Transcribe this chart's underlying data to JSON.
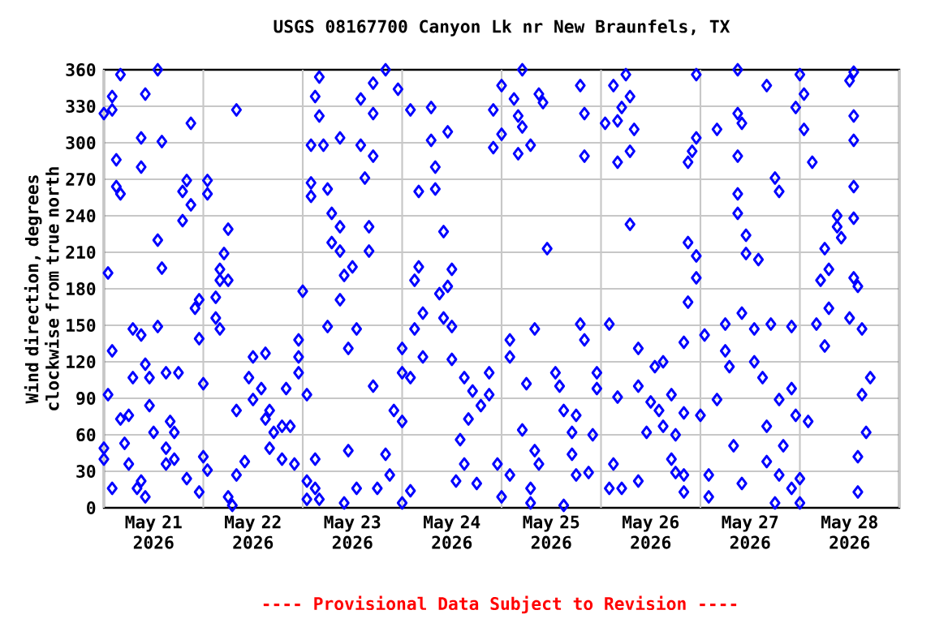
{
  "chart_data": {
    "type": "scatter",
    "title": "USGS 08167700 Canyon Lk nr New Braunfels, TX",
    "ylabel": "Wind direction, degrees clockwise from true north",
    "annotations": [
      "---- Provisional Data Subject to Revision ----"
    ],
    "color": "#0000ff",
    "marker": "diamond",
    "grid": true,
    "xlim": [
      "2026-05-21T00:00",
      "2026-05-29T00:00"
    ],
    "xticks": [
      {
        "value": "2026-05-21T00:00",
        "label": null
      },
      {
        "value": "2026-05-21T12:00",
        "label": "May 21 2026"
      },
      {
        "value": "2026-05-22T00:00",
        "label": null
      },
      {
        "value": "2026-05-22T12:00",
        "label": "May 22 2026"
      },
      {
        "value": "2026-05-23T00:00",
        "label": null
      },
      {
        "value": "2026-05-23T12:00",
        "label": "May 23 2026"
      },
      {
        "value": "2026-05-24T00:00",
        "label": null
      },
      {
        "value": "2026-05-24T12:00",
        "label": "May 24 2026"
      },
      {
        "value": "2026-05-25T00:00",
        "label": null
      },
      {
        "value": "2026-05-25T12:00",
        "label": "May 25 2026"
      },
      {
        "value": "2026-05-26T00:00",
        "label": null
      },
      {
        "value": "2026-05-26T12:00",
        "label": "May 26 2026"
      },
      {
        "value": "2026-05-27T00:00",
        "label": null
      },
      {
        "value": "2026-05-27T12:00",
        "label": "May 27 2026"
      },
      {
        "value": "2026-05-28T00:00",
        "label": null
      },
      {
        "value": "2026-05-28T12:00",
        "label": "May 28 2026"
      },
      {
        "value": "2026-05-29T00:00",
        "label": null
      }
    ],
    "ylim": [
      0,
      360
    ],
    "yticks": [
      0,
      30,
      60,
      90,
      120,
      150,
      180,
      210,
      240,
      270,
      300,
      330,
      360
    ],
    "x": [
      "2026-05-21T00:00",
      "2026-05-21T02:00",
      "2026-05-21T02:00",
      "2026-05-21T04:00",
      "2026-05-21T03:00",
      "2026-05-21T03:00",
      "2026-05-21T04:00",
      "2026-05-21T01:00",
      "2026-05-21T01:00",
      "2026-05-21T02:00",
      "2026-05-21T00:00",
      "2026-05-21T00:00",
      "2026-05-21T02:00",
      "2026-05-21T04:00",
      "2026-05-21T06:00",
      "2026-05-21T06:00",
      "2026-05-21T07:00",
      "2026-05-21T07:00",
      "2026-05-21T09:00",
      "2026-05-21T09:00",
      "2026-05-21T09:00",
      "2026-05-21T10:00",
      "2026-05-21T10:00",
      "2026-05-21T09:00",
      "2026-05-21T10:00",
      "2026-05-21T08:00",
      "2026-05-21T05:00",
      "2026-05-21T11:00",
      "2026-05-21T11:00",
      "2026-05-21T12:00",
      "2026-05-21T13:00",
      "2026-05-21T14:00",
      "2026-05-21T13:00",
      "2026-05-21T13:00",
      "2026-05-21T14:00",
      "2026-05-21T15:00",
      "2026-05-21T15:00",
      "2026-05-21T15:00",
      "2026-05-21T16:00",
      "2026-05-21T17:00",
      "2026-05-21T18:00",
      "2026-05-21T17:00",
      "2026-05-21T19:00",
      "2026-05-21T19:00",
      "2026-05-21T20:00",
      "2026-05-21T21:00",
      "2026-05-21T21:00",
      "2026-05-21T20:00",
      "2026-05-21T22:00",
      "2026-05-21T23:00",
      "2026-05-21T23:00",
      "2026-05-21T23:00",
      "2026-05-22T00:00",
      "2026-05-22T00:00",
      "2026-05-22T01:00",
      "2026-05-22T01:00",
      "2026-05-22T01:00",
      "2026-05-22T03:00",
      "2026-05-22T03:00",
      "2026-05-22T04:00",
      "2026-05-22T04:00",
      "2026-05-22T06:00",
      "2026-05-22T05:00",
      "2026-05-22T04:00",
      "2026-05-22T06:00",
      "2026-05-22T08:00",
      "2026-05-22T06:00",
      "2026-05-22T07:00",
      "2026-05-22T08:00",
      "2026-05-22T10:00",
      "2026-05-22T08:00",
      "2026-05-22T11:00",
      "2026-05-22T12:00",
      "2026-05-22T12:00",
      "2026-05-22T14:00",
      "2026-05-22T15:00",
      "2026-05-22T15:00",
      "2026-05-22T16:00",
      "2026-05-22T17:00",
      "2026-05-22T16:00",
      "2026-05-22T19:00",
      "2026-05-22T19:00",
      "2026-05-22T21:00",
      "2026-05-22T20:00",
      "2026-05-22T22:00",
      "2026-05-23T00:00",
      "2026-05-22T23:00",
      "2026-05-22T23:00",
      "2026-05-22T23:00",
      "2026-05-23T01:00",
      "2026-05-23T01:00",
      "2026-05-23T01:00",
      "2026-05-23T02:00",
      "2026-05-23T02:00",
      "2026-05-23T02:00",
      "2026-05-23T03:00",
      "2026-05-23T03:00",
      "2026-05-23T03:00",
      "2026-05-23T04:00",
      "2026-05-23T04:00",
      "2026-05-23T04:00",
      "2026-05-23T05:00",
      "2026-05-23T06:00",
      "2026-05-23T06:00",
      "2026-05-23T07:00",
      "2026-05-23T07:00",
      "2026-05-23T09:00",
      "2026-05-23T09:00",
      "2026-05-23T09:00",
      "2026-05-23T10:00",
      "2026-05-23T09:00",
      "2026-05-23T11:00",
      "2026-05-23T10:00",
      "2026-05-23T11:00",
      "2026-05-23T12:00",
      "2026-05-23T13:00",
      "2026-05-23T13:00",
      "2026-05-23T14:00",
      "2026-05-23T14:00",
      "2026-05-23T15:00",
      "2026-05-23T16:00",
      "2026-05-23T16:00",
      "2026-05-23T17:00",
      "2026-05-23T17:00",
      "2026-05-23T17:00",
      "2026-05-23T17:00",
      "2026-05-23T18:00",
      "2026-05-23T20:00",
      "2026-05-23T23:00",
      "2026-05-23T20:00",
      "2026-05-23T21:00",
      "2026-05-23T22:00",
      "2026-05-24T00:00",
      "2026-05-24T00:00",
      "2026-05-24T00:00",
      "2026-05-24T00:00",
      "2026-05-24T02:00",
      "2026-05-24T02:00",
      "2026-05-24T02:00",
      "2026-05-24T03:00",
      "2026-05-24T03:00",
      "2026-05-24T04:00",
      "2026-05-24T05:00",
      "2026-05-24T04:00",
      "2026-05-24T05:00",
      "2026-05-24T07:00",
      "2026-05-24T07:00",
      "2026-05-24T08:00",
      "2026-05-24T08:00",
      "2026-05-24T09:00",
      "2026-05-24T10:00",
      "2026-05-24T10:00",
      "2026-05-24T11:00",
      "2026-05-24T12:00",
      "2026-05-24T12:00",
      "2026-05-24T11:00",
      "2026-05-24T13:00",
      "2026-05-24T12:00",
      "2026-05-24T14:00",
      "2026-05-24T15:00",
      "2026-05-24T15:00",
      "2026-05-24T16:00",
      "2026-05-24T17:00",
      "2026-05-24T19:00",
      "2026-05-24T18:00",
      "2026-05-24T21:00",
      "2026-05-24T21:00",
      "2026-05-24T23:00",
      "2026-05-25T00:00",
      "2026-05-25T02:00",
      "2026-05-25T02:00",
      "2026-05-25T02:00",
      "2026-05-25T00:00",
      "2026-05-24T22:00",
      "2026-05-24T22:00",
      "2026-05-25T00:00",
      "2026-05-25T03:00",
      "2026-05-25T04:00",
      "2026-05-25T05:00",
      "2026-05-25T04:00",
      "2026-05-25T07:00",
      "2026-05-25T09:00",
      "2026-05-25T10:00",
      "2026-05-25T05:00",
      "2026-05-25T08:00",
      "2026-05-25T11:00",
      "2026-05-25T06:00",
      "2026-05-25T05:00",
      "2026-05-25T08:00",
      "2026-05-25T09:00",
      "2026-05-25T07:00",
      "2026-05-25T07:00",
      "2026-05-25T13:00",
      "2026-05-25T14:00",
      "2026-05-25T15:00",
      "2026-05-25T17:00",
      "2026-05-25T17:00",
      "2026-05-25T15:00",
      "2026-05-25T18:00",
      "2026-05-25T19:00",
      "2026-05-25T20:00",
      "2026-05-25T20:00",
      "2026-05-25T19:00",
      "2026-05-25T20:00",
      "2026-05-25T18:00",
      "2026-05-25T21:00",
      "2026-05-25T22:00",
      "2026-05-25T23:00",
      "2026-05-25T23:00",
      "2026-05-26T02:00",
      "2026-05-26T01:00",
      "2026-05-26T03:00",
      "2026-05-26T04:00",
      "2026-05-26T04:00",
      "2026-05-26T06:00",
      "2026-05-26T07:00",
      "2026-05-26T05:00",
      "2026-05-26T08:00",
      "2026-05-26T07:00",
      "2026-05-26T07:00",
      "2026-05-26T04:00",
      "2026-05-26T03:00",
      "2026-05-26T02:00",
      "2026-05-26T05:00",
      "2026-05-26T09:00",
      "2026-05-26T09:00",
      "2026-05-26T09:00",
      "2026-05-26T11:00",
      "2026-05-26T12:00",
      "2026-05-26T13:00",
      "2026-05-26T14:00",
      "2026-05-26T15:00",
      "2026-05-26T15:00",
      "2026-05-26T17:00",
      "2026-05-26T17:00",
      "2026-05-26T18:00",
      "2026-05-26T18:00",
      "2026-05-26T20:00",
      "2026-05-26T20:00",
      "2026-05-26T20:00",
      "2026-05-26T20:00",
      "2026-05-26T21:00",
      "2026-05-26T21:00",
      "2026-05-26T22:00",
      "2026-05-26T23:00",
      "2026-05-26T23:00",
      "2026-05-26T21:00",
      "2026-05-26T23:00",
      "2026-05-26T23:00",
      "2026-05-27T00:00",
      "2026-05-27T01:00",
      "2026-05-27T02:00",
      "2026-05-27T02:00",
      "2026-05-27T04:00",
      "2026-05-27T04:00",
      "2026-05-27T06:00",
      "2026-05-27T06:00",
      "2026-05-27T07:00",
      "2026-05-27T08:00",
      "2026-05-27T09:00",
      "2026-05-27T09:00",
      "2026-05-27T09:00",
      "2026-05-27T09:00",
      "2026-05-27T09:00",
      "2026-05-27T10:00",
      "2026-05-27T10:00",
      "2026-05-27T11:00",
      "2026-05-27T11:00",
      "2026-05-27T10:00",
      "2026-05-27T13:00",
      "2026-05-27T13:00",
      "2026-05-27T14:00",
      "2026-05-27T16:00",
      "2026-05-27T15:00",
      "2026-05-27T16:00",
      "2026-05-27T16:00",
      "2026-05-27T17:00",
      "2026-05-27T18:00",
      "2026-05-27T18:00",
      "2026-05-27T19:00",
      "2026-05-27T19:00",
      "2026-05-27T19:00",
      "2026-05-27T20:00",
      "2026-05-27T22:00",
      "2026-05-27T22:00",
      "2026-05-27T23:00",
      "2026-05-27T22:00",
      "2026-05-28T00:00",
      "2026-05-28T00:00",
      "2026-05-27T23:00",
      "2026-05-28T01:00",
      "2026-05-28T01:00",
      "2026-05-28T03:00",
      "2026-05-28T02:00",
      "2026-05-28T00:00",
      "2026-05-28T06:00",
      "2026-05-28T04:00",
      "2026-05-28T05:00",
      "2026-05-28T06:00",
      "2026-05-28T07:00",
      "2026-05-28T09:00",
      "2026-05-28T10:00",
      "2026-05-28T09:00",
      "2026-05-28T12:00",
      "2026-05-28T13:00",
      "2026-05-28T13:00",
      "2026-05-28T13:00",
      "2026-05-28T13:00",
      "2026-05-28T13:00",
      "2026-05-28T14:00",
      "2026-05-28T15:00",
      "2026-05-28T16:00",
      "2026-05-28T14:00",
      "2026-05-28T17:00",
      "2026-05-28T15:00",
      "2026-05-28T14:00",
      "2026-05-28T12:00",
      "2026-05-28T13:00",
      "2026-05-28T07:00"
    ],
    "values": [
      324,
      327,
      338,
      356,
      286,
      264,
      258,
      193,
      93,
      129,
      49,
      40,
      16,
      73,
      76,
      36,
      107,
      147,
      142,
      304,
      280,
      340,
      118,
      22,
      9,
      16,
      53,
      84,
      107,
      62,
      360,
      301,
      149,
      220,
      197,
      49,
      36,
      111,
      71,
      62,
      111,
      40,
      236,
      260,
      269,
      316,
      249,
      24,
      164,
      171,
      139,
      13,
      42,
      102,
      269,
      258,
      31,
      173,
      156,
      147,
      196,
      229,
      209,
      187,
      187,
      327,
      9,
      2,
      27,
      38,
      80,
      107,
      124,
      89,
      98,
      127,
      73,
      80,
      62,
      49,
      67,
      40,
      67,
      98,
      36,
      178,
      124,
      138,
      111,
      22,
      93,
      7,
      298,
      267,
      256,
      338,
      40,
      16,
      7,
      354,
      322,
      298,
      262,
      149,
      218,
      242,
      231,
      211,
      304,
      191,
      171,
      47,
      4,
      131,
      198,
      147,
      16,
      336,
      298,
      271,
      231,
      211,
      324,
      289,
      349,
      100,
      16,
      360,
      344,
      44,
      27,
      80,
      71,
      4,
      111,
      131,
      14,
      327,
      107,
      147,
      187,
      198,
      160,
      260,
      124,
      329,
      302,
      280,
      262,
      176,
      227,
      156,
      309,
      149,
      196,
      182,
      22,
      122,
      56,
      107,
      36,
      73,
      96,
      84,
      20,
      111,
      93,
      36,
      9,
      27,
      138,
      124,
      347,
      327,
      296,
      307,
      336,
      322,
      313,
      291,
      298,
      340,
      333,
      360,
      147,
      213,
      102,
      64,
      47,
      36,
      16,
      4,
      111,
      100,
      80,
      62,
      44,
      2,
      27,
      347,
      324,
      289,
      151,
      138,
      76,
      29,
      60,
      98,
      111,
      151,
      316,
      347,
      318,
      284,
      356,
      338,
      329,
      311,
      233,
      293,
      91,
      36,
      16,
      16,
      22,
      131,
      100,
      62,
      87,
      116,
      80,
      67,
      120,
      93,
      40,
      29,
      60,
      78,
      27,
      13,
      136,
      218,
      284,
      293,
      207,
      189,
      169,
      304,
      356,
      76,
      142,
      27,
      9,
      311,
      89,
      151,
      129,
      116,
      51,
      258,
      242,
      324,
      289,
      360,
      316,
      160,
      224,
      209,
      20,
      120,
      147,
      204,
      347,
      107,
      67,
      38,
      151,
      4,
      271,
      260,
      89,
      27,
      51,
      149,
      98,
      76,
      16,
      4,
      356,
      329,
      340,
      311,
      284,
      71,
      24,
      133,
      151,
      187,
      213,
      196,
      231,
      222,
      240,
      351,
      358,
      322,
      302,
      264,
      238,
      182,
      147,
      62,
      42,
      107,
      93,
      13,
      156,
      189,
      164
    ]
  }
}
